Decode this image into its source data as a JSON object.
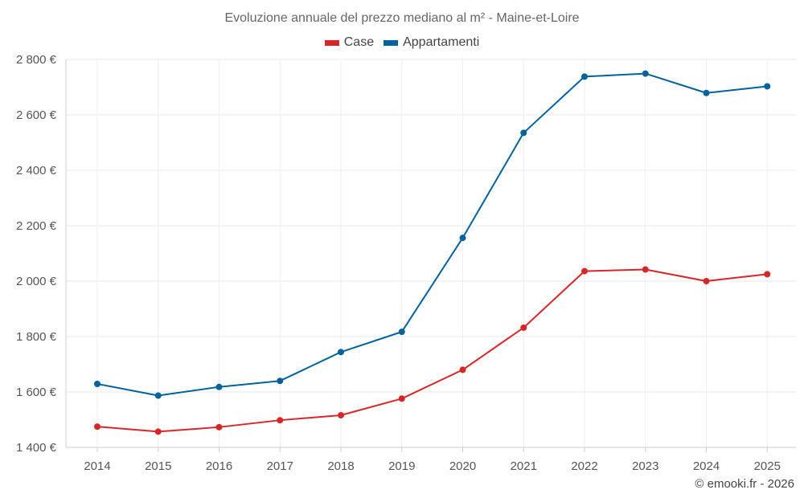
{
  "chart_data": {
    "type": "line",
    "title": "Evoluzione annuale del prezzo mediano al m² - Maine-et-Loire",
    "xlabel": "",
    "ylabel": "",
    "categories": [
      "2014",
      "2015",
      "2016",
      "2017",
      "2018",
      "2019",
      "2020",
      "2021",
      "2022",
      "2023",
      "2024",
      "2025"
    ],
    "ylim": [
      1400,
      2800
    ],
    "yticks": [
      1400,
      1600,
      1800,
      2000,
      2200,
      2400,
      2600,
      2800
    ],
    "ytick_labels": [
      "1 400 €",
      "1 600 €",
      "1 800 €",
      "2 000 €",
      "2 200 €",
      "2 400 €",
      "2 600 €",
      "2 800 €"
    ],
    "grid": true,
    "legend_position": "top-center",
    "series": [
      {
        "name": "Case",
        "color": "#d62728",
        "values": [
          1475,
          1457,
          1473,
          1498,
          1516,
          1576,
          1680,
          1832,
          2036,
          2042,
          2000,
          2025
        ]
      },
      {
        "name": "Appartamenti",
        "color": "#00629b",
        "values": [
          1629,
          1587,
          1618,
          1640,
          1744,
          1817,
          2156,
          2535,
          2738,
          2749,
          2679,
          2703
        ]
      }
    ]
  },
  "credit": "© emooki.fr - 2026"
}
